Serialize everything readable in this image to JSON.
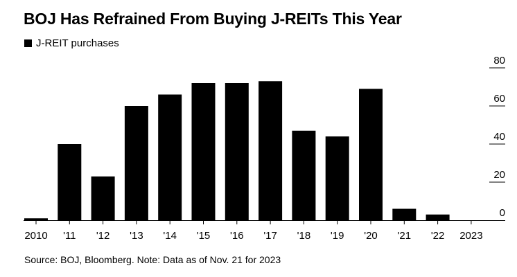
{
  "chart_data": {
    "type": "bar",
    "title": "BOJ Has Refrained From Buying J-REITs This Year",
    "legend": [
      "J-REIT purchases"
    ],
    "legend_position": "top-left",
    "categories": [
      "2010",
      "'11",
      "'12",
      "'13",
      "'14",
      "'15",
      "'16",
      "'17",
      "'18",
      "'19",
      "'20",
      "'21",
      "'22",
      "2023"
    ],
    "values": [
      1,
      40,
      23,
      60,
      66,
      72,
      72,
      73,
      47,
      44,
      69,
      6,
      3,
      0
    ],
    "ylabel": "",
    "xlabel": "",
    "ylim": [
      0,
      80
    ],
    "yticks": [
      0,
      20,
      40,
      60,
      80
    ],
    "yaxis_position": "right",
    "grid": false,
    "bar_color": "#000000",
    "source": "Source: BOJ, Bloomberg. Note: Data as of Nov. 21 for 2023"
  }
}
